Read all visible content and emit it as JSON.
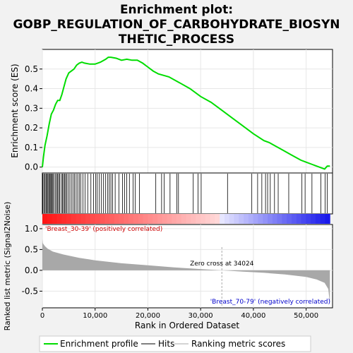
{
  "title_lines": [
    "Enrichment plot:",
    "GOBP_REGULATION_OF_CARBOHYDRATE_BIOSYN",
    "THETIC_PROCESS"
  ],
  "colors": {
    "es_line": "#00dd00",
    "hits": "#000000",
    "metric_fill": "#a8a8a8",
    "positive_label": "#cc0000",
    "negative_label": "#0000cc",
    "zero_line": "#aaaaaa"
  },
  "chart_data": {
    "type": "line",
    "top_panel": {
      "ylabel": "Enrichment score (ES)",
      "ylim": [
        -0.03,
        0.6
      ],
      "yticks": [
        0.0,
        0.1,
        0.2,
        0.3,
        0.4,
        0.5
      ],
      "ytick_labels": [
        "0.0",
        "0.1",
        "0.2",
        "0.3",
        "0.4",
        "0.5"
      ],
      "grid": true,
      "series": [
        {
          "x": [
            0,
            200,
            500,
            900,
            1300,
            1700,
            2100,
            2500,
            2900,
            3300,
            3700,
            4100,
            4500,
            5000,
            5500,
            6000,
            6500,
            7000,
            7500,
            8000,
            9000,
            10000,
            11000,
            12000,
            12500,
            13000,
            14000,
            15000,
            16000,
            17000,
            18000,
            19000,
            20000,
            21000,
            22000,
            24000,
            26000,
            28000,
            30000,
            32000,
            34000,
            36000,
            38000,
            40000,
            42000,
            43000,
            44000,
            45000,
            46000,
            47000,
            48000,
            49000,
            50000,
            51000,
            52000,
            53000,
            53500,
            54000,
            54500
          ],
          "y": [
            0.0,
            0.05,
            0.11,
            0.16,
            0.22,
            0.27,
            0.29,
            0.32,
            0.34,
            0.34,
            0.37,
            0.41,
            0.45,
            0.48,
            0.49,
            0.5,
            0.52,
            0.53,
            0.535,
            0.53,
            0.525,
            0.525,
            0.535,
            0.55,
            0.56,
            0.56,
            0.555,
            0.545,
            0.55,
            0.545,
            0.545,
            0.53,
            0.51,
            0.49,
            0.475,
            0.46,
            0.43,
            0.4,
            0.36,
            0.33,
            0.29,
            0.25,
            0.21,
            0.17,
            0.135,
            0.125,
            0.11,
            0.095,
            0.08,
            0.065,
            0.05,
            0.035,
            0.025,
            0.015,
            0.005,
            -0.005,
            -0.01,
            0.005,
            0.005
          ]
        }
      ]
    },
    "hits_panel": {
      "hit_positions": [
        100,
        300,
        500,
        700,
        800,
        1000,
        1200,
        1350,
        1500,
        1700,
        1850,
        2000,
        2200,
        2500,
        2700,
        2900,
        3100,
        3300,
        3600,
        3800,
        4000,
        4200,
        4400,
        4600,
        4900,
        5200,
        5500,
        5800,
        6100,
        6400,
        6700,
        7000,
        7300,
        7700,
        8100,
        8600,
        9200,
        9700,
        10100,
        10400,
        10800,
        11200,
        11600,
        12000,
        12400,
        12700,
        13000,
        13300,
        13800,
        14500,
        15200,
        15600,
        16000,
        16500,
        17200,
        17600,
        18400,
        21500,
        22600,
        23100,
        24200,
        25500,
        25800,
        28600,
        29500,
        30100,
        35100,
        39700,
        40800,
        41600,
        42300,
        42700,
        43200,
        44000,
        44700,
        46700,
        49200,
        49800,
        51100,
        52800,
        53600,
        54000
      ]
    },
    "metric_panel": {
      "ylabel": "Ranked list metric (Signal2Noise)",
      "xlabel": "Rank in Ordered Dataset",
      "ylim": [
        -0.9,
        1.1
      ],
      "yticks": [
        -0.5,
        0.0,
        0.5,
        1.0
      ],
      "ytick_labels": [
        "-0.5",
        "0.0",
        "0.5",
        "1.0"
      ],
      "x": [
        0,
        100,
        500,
        1000,
        2000,
        4000,
        7000,
        10000,
        15000,
        20000,
        25000,
        30000,
        34024,
        38000,
        42000,
        46000,
        50000,
        52000,
        53500,
        54200,
        54500
      ],
      "values": [
        0.75,
        0.65,
        0.58,
        0.52,
        0.45,
        0.38,
        0.3,
        0.24,
        0.17,
        0.12,
        0.07,
        0.03,
        0.0,
        -0.03,
        -0.06,
        -0.1,
        -0.16,
        -0.22,
        -0.3,
        -0.45,
        -0.8
      ],
      "zero_cross_label": "Zero cross at 34024",
      "zero_cross": 34024,
      "positive_label": "'Breast_30-39' (positively correlated)",
      "negative_label": "'Breast_70-79' (negatively correlated)"
    },
    "xlim": [
      0,
      55000
    ],
    "xticks": [
      0,
      10000,
      20000,
      30000,
      40000,
      50000
    ],
    "xtick_labels": [
      "0",
      "10,000",
      "20,000",
      "30,000",
      "40,000",
      "50,000"
    ],
    "legend": {
      "placement": "bottom",
      "entries": [
        "Enrichment profile",
        "Hits",
        "Ranking metric scores"
      ]
    }
  }
}
